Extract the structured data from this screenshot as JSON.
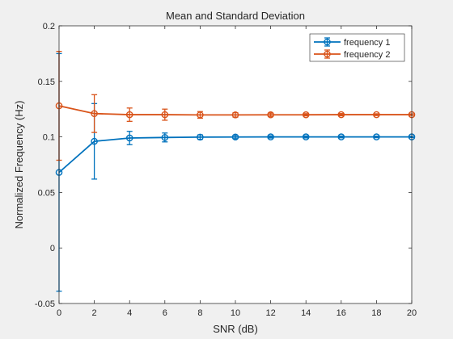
{
  "chart_data": {
    "type": "line",
    "title": "Mean and Standard Deviation",
    "xlabel": "SNR (dB)",
    "ylabel": "Normalized Frequency (Hz)",
    "xlim": [
      0,
      20
    ],
    "ylim": [
      -0.05,
      0.2
    ],
    "xticks": [
      0,
      2,
      4,
      6,
      8,
      10,
      12,
      14,
      16,
      18,
      20
    ],
    "xtick_labels": [
      "0",
      "2",
      "4",
      "6",
      "8",
      "10",
      "12",
      "14",
      "16",
      "18",
      "20"
    ],
    "yticks": [
      -0.05,
      0,
      0.05,
      0.1,
      0.15,
      0.2
    ],
    "ytick_labels": [
      "-0.05",
      "0",
      "0.05",
      "0.1",
      "0.15",
      "0.2"
    ],
    "grid": false,
    "legend_position": "top-right",
    "error_bars": true,
    "marker": "circle",
    "x": [
      0,
      2,
      4,
      6,
      8,
      10,
      12,
      14,
      16,
      18,
      20
    ],
    "series": [
      {
        "name": "frequency 1",
        "color": "#0072BD",
        "mean": [
          0.068,
          0.096,
          0.099,
          0.0995,
          0.0998,
          0.0999,
          0.1,
          0.1,
          0.1,
          0.1,
          0.1
        ],
        "std": [
          0.107,
          0.034,
          0.006,
          0.004,
          0.002,
          0.0015,
          0.001,
          0.0009,
          0.0008,
          0.0007,
          0.0006
        ]
      },
      {
        "name": "frequency 2",
        "color": "#D95319",
        "mean": [
          0.128,
          0.121,
          0.12,
          0.12,
          0.1198,
          0.1198,
          0.1199,
          0.1199,
          0.12,
          0.12,
          0.12
        ],
        "std": [
          0.049,
          0.017,
          0.006,
          0.005,
          0.003,
          0.002,
          0.0015,
          0.001,
          0.001,
          0.0008,
          0.0007
        ]
      }
    ]
  }
}
